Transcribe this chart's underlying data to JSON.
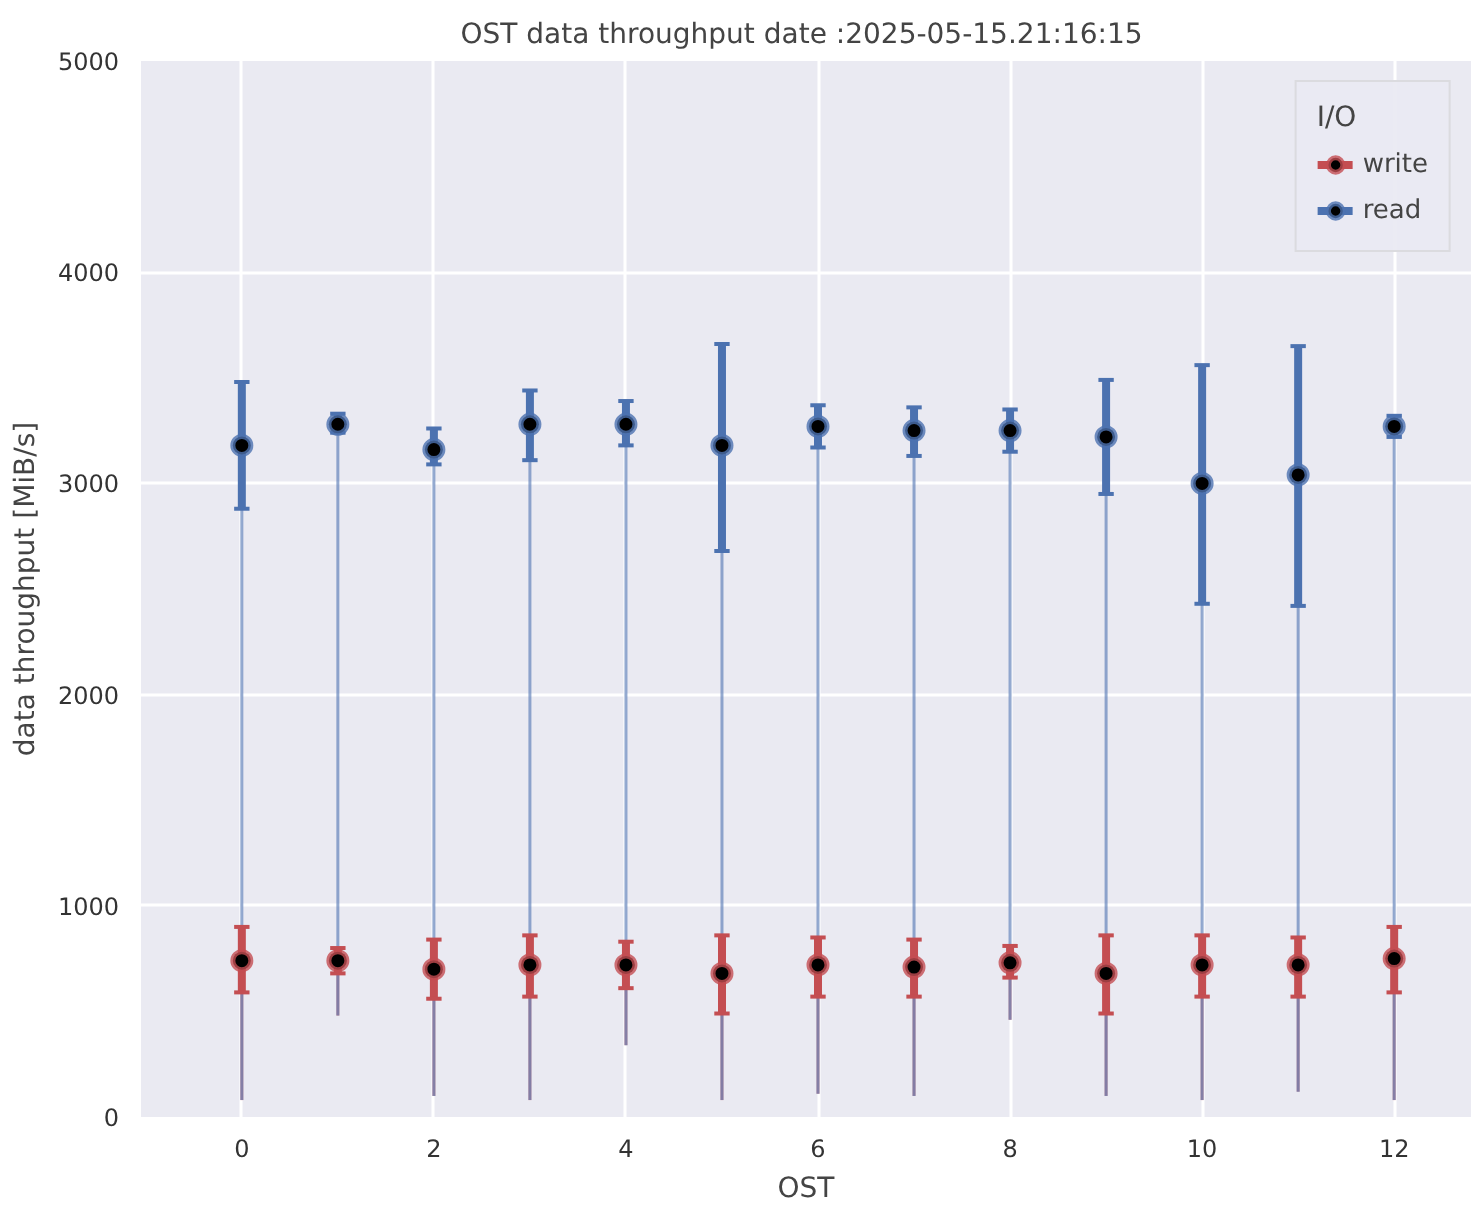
{
  "chart_data": {
    "type": "box",
    "title": "OST data throughput  date :2025-05-15.21:16:15",
    "xlabel": "OST",
    "ylabel": "data throughput [MiB/s]",
    "legend_title": "I/O",
    "x": [
      0,
      1,
      2,
      3,
      4,
      5,
      6,
      7,
      8,
      9,
      10,
      11,
      12
    ],
    "series": [
      {
        "name": "write",
        "color": "#c44e52",
        "marker": "circle",
        "boxes": [
          {
            "low": 80,
            "q1": 590,
            "median": 740,
            "q3": 900,
            "high": 900
          },
          {
            "low": 480,
            "q1": 680,
            "median": 740,
            "q3": 800,
            "high": 800
          },
          {
            "low": 100,
            "q1": 560,
            "median": 700,
            "q3": 840,
            "high": 840
          },
          {
            "low": 80,
            "q1": 570,
            "median": 720,
            "q3": 860,
            "high": 860
          },
          {
            "low": 340,
            "q1": 610,
            "median": 720,
            "q3": 830,
            "high": 830
          },
          {
            "low": 80,
            "q1": 490,
            "median": 680,
            "q3": 860,
            "high": 860
          },
          {
            "low": 110,
            "q1": 570,
            "median": 720,
            "q3": 850,
            "high": 850
          },
          {
            "low": 100,
            "q1": 570,
            "median": 710,
            "q3": 840,
            "high": 840
          },
          {
            "low": 460,
            "q1": 660,
            "median": 730,
            "q3": 810,
            "high": 810
          },
          {
            "low": 100,
            "q1": 490,
            "median": 680,
            "q3": 860,
            "high": 860
          },
          {
            "low": 80,
            "q1": 570,
            "median": 720,
            "q3": 860,
            "high": 860
          },
          {
            "low": 120,
            "q1": 570,
            "median": 720,
            "q3": 850,
            "high": 850
          },
          {
            "low": 80,
            "q1": 590,
            "median": 750,
            "q3": 900,
            "high": 900
          }
        ]
      },
      {
        "name": "read",
        "color": "#4c72b0",
        "marker": "circle",
        "boxes": [
          {
            "low": 80,
            "q1": 2880,
            "median": 3180,
            "q3": 3480,
            "high": 3480
          },
          {
            "low": 480,
            "q1": 3240,
            "median": 3280,
            "q3": 3330,
            "high": 3330
          },
          {
            "low": 100,
            "q1": 3090,
            "median": 3160,
            "q3": 3260,
            "high": 3260
          },
          {
            "low": 80,
            "q1": 3110,
            "median": 3280,
            "q3": 3440,
            "high": 3440
          },
          {
            "low": 340,
            "q1": 3180,
            "median": 3280,
            "q3": 3390,
            "high": 3390
          },
          {
            "low": 80,
            "q1": 2680,
            "median": 3180,
            "q3": 3660,
            "high": 3660
          },
          {
            "low": 110,
            "q1": 3170,
            "median": 3270,
            "q3": 3370,
            "high": 3370
          },
          {
            "low": 100,
            "q1": 3130,
            "median": 3250,
            "q3": 3360,
            "high": 3360
          },
          {
            "low": 460,
            "q1": 3150,
            "median": 3250,
            "q3": 3350,
            "high": 3350
          },
          {
            "low": 100,
            "q1": 2950,
            "median": 3220,
            "q3": 3490,
            "high": 3490
          },
          {
            "low": 80,
            "q1": 2430,
            "median": 3000,
            "q3": 3560,
            "high": 3560
          },
          {
            "low": 120,
            "q1": 2420,
            "median": 3040,
            "q3": 3650,
            "high": 3650
          },
          {
            "low": 80,
            "q1": 3220,
            "median": 3270,
            "q3": 3320,
            "high": 3320
          }
        ]
      }
    ],
    "xlim": [
      -1.05,
      12.8
    ],
    "ylim": [
      0,
      5000
    ],
    "xticks": [
      0,
      2,
      4,
      6,
      8,
      10,
      12
    ],
    "yticks": [
      0,
      1000,
      2000,
      3000,
      4000,
      5000
    ],
    "grid": true,
    "legend": "top right"
  }
}
